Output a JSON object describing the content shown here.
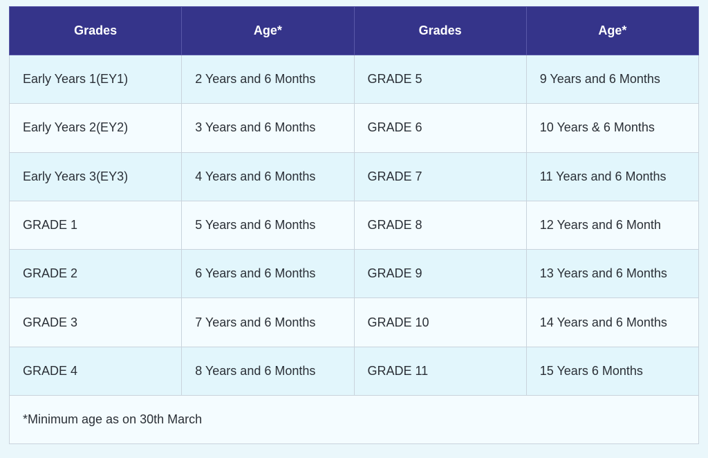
{
  "headers": [
    "Grades",
    "Age*",
    "Grades",
    "Age*"
  ],
  "rows": [
    [
      "Early Years 1(EY1)",
      "2 Years and 6 Months",
      "GRADE 5",
      "9 Years and 6 Months"
    ],
    [
      "Early Years 2(EY2)",
      "3 Years and 6 Months",
      "GRADE 6",
      "10 Years & 6 Months"
    ],
    [
      "Early Years 3(EY3)",
      "4 Years and 6 Months",
      "GRADE 7",
      "11 Years and 6 Months"
    ],
    [
      "GRADE 1",
      "5 Years and 6 Months",
      "GRADE 8",
      "12 Years and 6 Month"
    ],
    [
      "GRADE 2",
      "6 Years and 6 Months",
      "GRADE 9",
      "13 Years and 6 Months"
    ],
    [
      "GRADE 3",
      "7 Years and 6 Months",
      "GRADE 10",
      "14 Years and 6 Months"
    ],
    [
      "GRADE 4",
      "8 Years and 6 Months",
      "GRADE 11",
      "15 Years 6 Months"
    ]
  ],
  "footnote": "*Minimum age as on 30th March",
  "colors": {
    "header_bg": "#35348a",
    "header_text": "#ffffff",
    "row_odd_bg": "#e2f6fc",
    "row_even_bg": "#f4fcff",
    "border": "#c9d3dc"
  }
}
